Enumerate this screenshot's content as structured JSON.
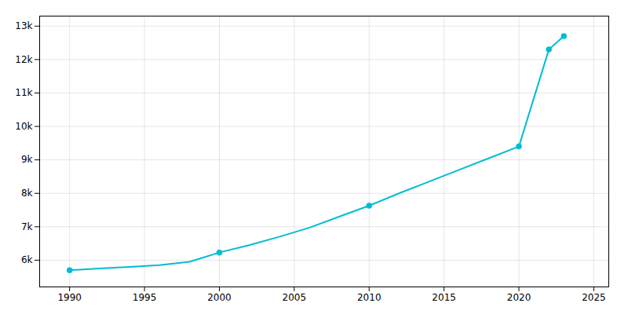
{
  "chart_data": {
    "type": "line",
    "x": [
      1990,
      1992,
      1994,
      1996,
      1998,
      2000,
      2002,
      2004,
      2006,
      2008,
      2010,
      2012,
      2014,
      2016,
      2018,
      2020,
      2022,
      2023
    ],
    "series": [
      {
        "type": "line",
        "color": "#00BCD4",
        "values": [
          5700,
          5750,
          5800,
          5850,
          5950,
          6230,
          6450,
          6700,
          6970,
          7300,
          7630,
          8000,
          8350,
          8700,
          9050,
          9400,
          12300,
          12700
        ]
      },
      {
        "type": "scatter",
        "marker": "o",
        "color": "#00BCD4",
        "values": [
          5700,
          null,
          null,
          null,
          null,
          6230,
          null,
          null,
          null,
          null,
          7630,
          null,
          null,
          null,
          null,
          9400,
          12300,
          12700
        ]
      }
    ],
    "xlim": [
      1988,
      2026
    ],
    "ylim": [
      5200,
      13300
    ],
    "xticks": [
      1990,
      1995,
      2000,
      2005,
      2010,
      2015,
      2020,
      2025
    ],
    "yticks": [
      {
        "value": 6000,
        "label": "6k"
      },
      {
        "value": 7000,
        "label": "7k"
      },
      {
        "value": 8000,
        "label": "8k"
      },
      {
        "value": 9000,
        "label": "9k"
      },
      {
        "value": 10000,
        "label": "10k"
      },
      {
        "value": 11000,
        "label": "11k"
      },
      {
        "value": 12000,
        "label": "12k"
      },
      {
        "value": 13000,
        "label": "13k"
      }
    ],
    "grid": true
  }
}
